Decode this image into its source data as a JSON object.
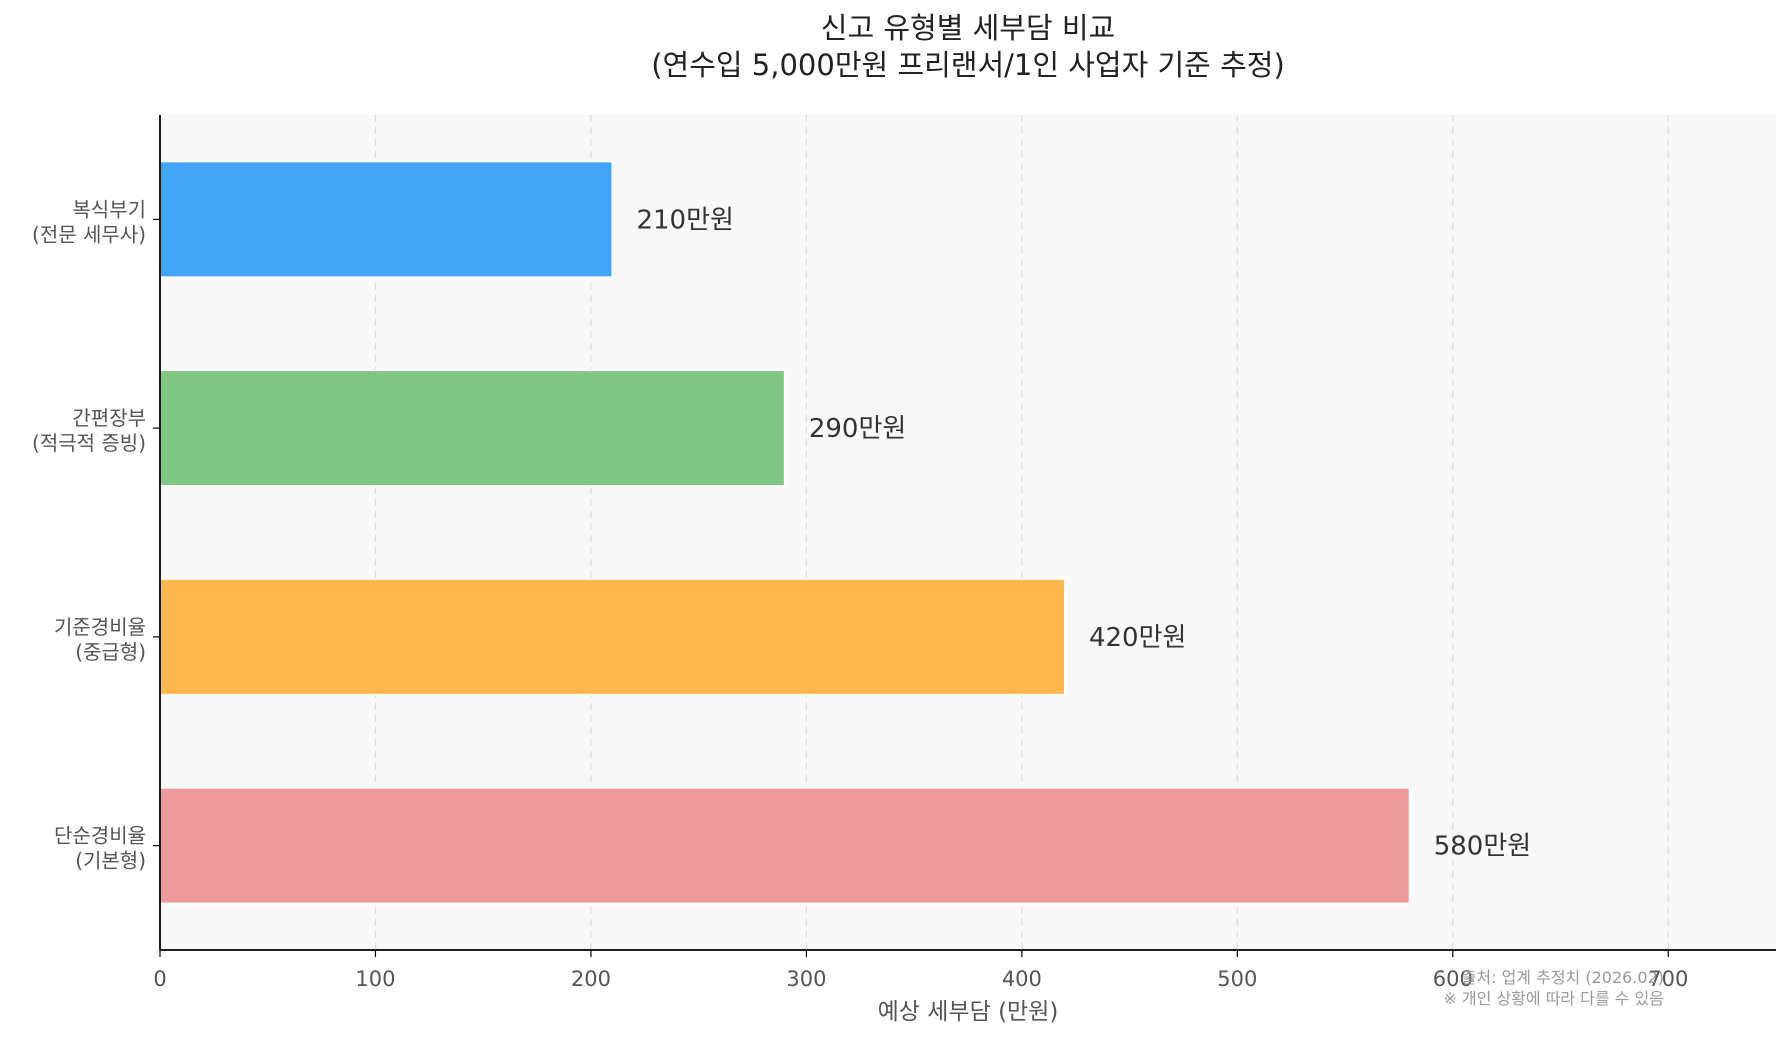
{
  "chart_data": {
    "type": "bar",
    "orientation": "horizontal",
    "title": "신고 유형별 세부담 비교",
    "subtitle": "(연수입 5,000만원 프리랜서/1인 사업자 기준 추정)",
    "xlabel": "예상 세부담 (만원)",
    "ylabel": "",
    "xlim": [
      0,
      750
    ],
    "xticks": [
      0,
      100,
      200,
      300,
      400,
      500,
      600,
      700
    ],
    "grid": "vertical dashed",
    "categories": [
      [
        "복식부기",
        "(전문 세무사)"
      ],
      [
        "간편장부",
        "(적극적 증빙)"
      ],
      [
        "기준경비율",
        "(중급형)"
      ],
      [
        "단순경비율",
        "(기본형)"
      ]
    ],
    "values": [
      210,
      290,
      420,
      580
    ],
    "value_labels": [
      "210만원",
      "290만원",
      "420만원",
      "580만원"
    ],
    "colors": [
      "#42a5f5",
      "#81c784",
      "#ffb74d",
      "#ef9a9a"
    ],
    "annotations": [
      "출처: 업계 추정치 (2026.02)",
      "※ 개인 상황에 따라 다를 수 있음"
    ]
  },
  "style": {
    "plot_background": "#f8f8f8",
    "text_color": "#333333",
    "tick_color": "#555555",
    "note_color": "#999999",
    "grid_color": "#dddddd"
  }
}
